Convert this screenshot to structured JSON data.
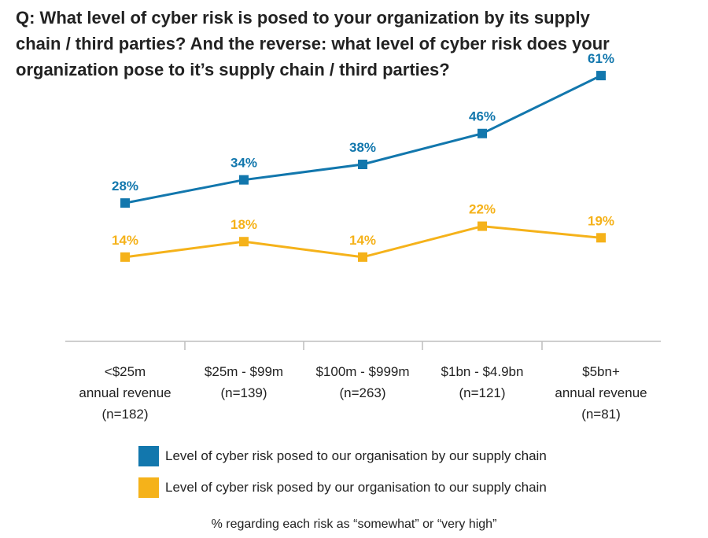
{
  "question": {
    "lines": [
      "Q: What level of cyber risk is posed to your organization by its supply",
      "chain / third parties? And the reverse: what level of cyber risk does your",
      "organization pose to it’s supply chain / third parties?"
    ]
  },
  "chart_data": {
    "type": "line",
    "categories": [
      [
        "<$25m",
        "annual revenue",
        "(n=182)"
      ],
      [
        "$25m - $99m",
        "(n=139)"
      ],
      [
        "$100m - $999m",
        "(n=263)"
      ],
      [
        "$1bn - $4.9bn",
        "(n=121)"
      ],
      [
        "$5bn+",
        "annual revenue",
        "(n=81)"
      ]
    ],
    "series": [
      {
        "name": "Level of cyber risk posed to our organisation by our supply chain",
        "values": [
          28,
          34,
          38,
          46,
          61
        ],
        "labels": [
          "28%",
          "34%",
          "38%",
          "46%",
          "61%"
        ],
        "color": "#1277ad"
      },
      {
        "name": "Level of cyber risk posed by our organisation to our supply chain",
        "values": [
          14,
          18,
          14,
          22,
          19
        ],
        "labels": [
          "14%",
          "18%",
          "14%",
          "22%",
          "19%"
        ],
        "color": "#f5b21a"
      }
    ],
    "ylim": [
      0,
      70
    ],
    "grid": false,
    "legend_position": "bottom",
    "footnote": "% regarding each risk as “somewhat” or “very high”"
  }
}
